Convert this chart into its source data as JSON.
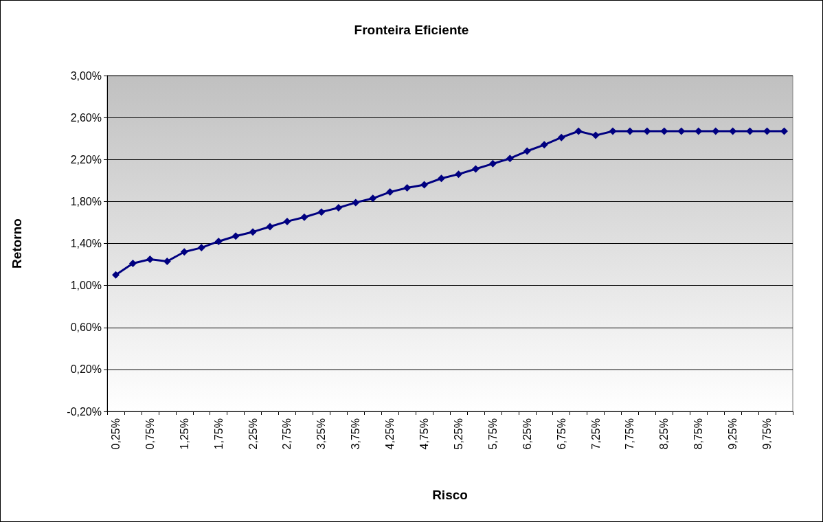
{
  "chart_data": {
    "type": "line",
    "title": "Fronteira Eficiente",
    "xlabel": "Risco",
    "ylabel": "Retorno",
    "categories": [
      "0,25%",
      null,
      "0,75%",
      null,
      "1,25%",
      null,
      "1,75%",
      null,
      "2,25%",
      null,
      "2,75%",
      null,
      "3,25%",
      null,
      "3,75%",
      null,
      "4,25%",
      null,
      "4,75%",
      null,
      "5,25%",
      null,
      "5,75%",
      null,
      "6,25%",
      null,
      "6,75%",
      null,
      "7,25%",
      null,
      "7,75%",
      null,
      "8,25%",
      null,
      "8,75%",
      null,
      "9,25%",
      null,
      "9,75%",
      null
    ],
    "series": [
      {
        "color": "#000080",
        "values": [
          1.1,
          1.21,
          1.25,
          1.23,
          1.32,
          1.36,
          1.42,
          1.47,
          1.51,
          1.56,
          1.61,
          1.65,
          1.7,
          1.74,
          1.79,
          1.83,
          1.89,
          1.93,
          1.96,
          2.02,
          2.06,
          2.11,
          2.16,
          2.21,
          2.28,
          2.34,
          2.41,
          2.47,
          2.43,
          2.47,
          2.47,
          2.47,
          2.47,
          2.47,
          2.47,
          2.47,
          2.47,
          2.47,
          2.47,
          2.47
        ]
      }
    ],
    "ylim": [
      -0.2,
      3.0
    ],
    "yticks": [
      {
        "value": -0.2,
        "label": "-0,20%"
      },
      {
        "value": 0.2,
        "label": "0,20%"
      },
      {
        "value": 0.6,
        "label": "0,60%"
      },
      {
        "value": 1.0,
        "label": "1,00%"
      },
      {
        "value": 1.4,
        "label": "1,40%"
      },
      {
        "value": 1.8,
        "label": "1,80%"
      },
      {
        "value": 2.2,
        "label": "2,20%"
      },
      {
        "value": 2.6,
        "label": "2,60%"
      },
      {
        "value": 3.0,
        "label": "3,00%"
      }
    ],
    "grid": "y",
    "marker": "diamond",
    "line_style": "solid"
  }
}
